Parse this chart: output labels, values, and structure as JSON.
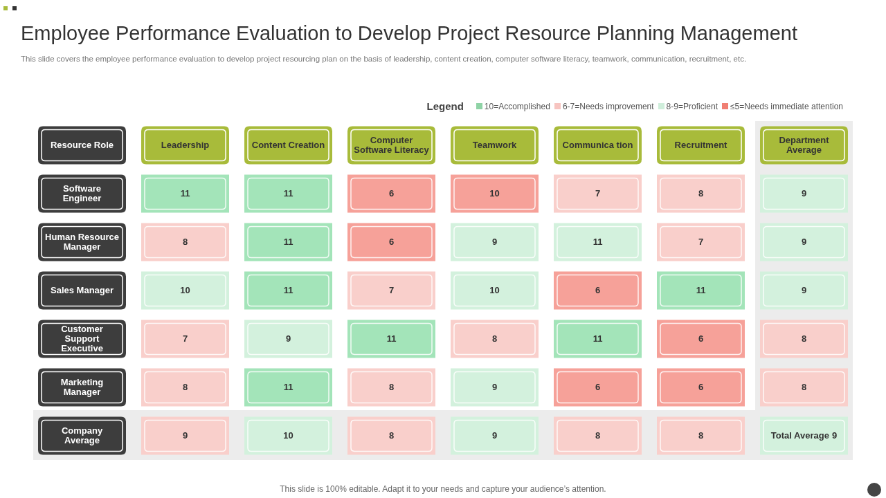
{
  "chart_data": {
    "type": "heatmap",
    "title": "Employee Performance Evaluation to Develop Project Resource Planning Management",
    "subtitle": "This slide covers the employee performance evaluation to develop project resourcing plan on the basis of leadership, content creation, computer software literacy, teamwork, communication, recruitment, etc.",
    "ylabel": "Resource Role",
    "categories": [
      "Leadership",
      "Content Creation",
      "Computer Software Literacy",
      "Teamwork",
      "Communica tion",
      "Recruitment",
      "Department Average"
    ],
    "y_categories": [
      "Software Engineer",
      "Human Resource Manager",
      "Sales Manager",
      "Customer Support Executive",
      "Marketing Manager",
      "Company Average"
    ],
    "cells": [
      [
        11,
        11,
        6,
        10,
        7,
        8,
        9
      ],
      [
        8,
        11,
        6,
        9,
        11,
        7,
        9
      ],
      [
        10,
        11,
        7,
        10,
        6,
        11,
        9
      ],
      [
        7,
        9,
        11,
        8,
        11,
        6,
        8
      ],
      [
        8,
        11,
        8,
        9,
        6,
        6,
        8
      ],
      [
        9,
        10,
        8,
        9,
        8,
        8,
        9
      ]
    ],
    "data_labels": true,
    "colors": [
      [
        "#a3e4b9",
        "#a3e4b9",
        "#f6a199",
        "#f6a199",
        "#f9cfcb",
        "#f9cfcb",
        "#d3f1dd"
      ],
      [
        "#f9cfcb",
        "#a3e4b9",
        "#f6a199",
        "#d3f1dd",
        "#d3f1dd",
        "#f9cfcb",
        "#d3f1dd"
      ],
      [
        "#d3f1dd",
        "#a3e4b9",
        "#f9cfcb",
        "#d3f1dd",
        "#f6a199",
        "#a3e4b9",
        "#d3f1dd"
      ],
      [
        "#f9cfcb",
        "#d3f1dd",
        "#a3e4b9",
        "#f9cfcb",
        "#a3e4b9",
        "#f6a199",
        "#f9cfcb"
      ],
      [
        "#f9cfcb",
        "#a3e4b9",
        "#f9cfcb",
        "#d3f1dd",
        "#f6a199",
        "#f6a199",
        "#f9cfcb"
      ],
      [
        "#f9cfcb",
        "#d3f1dd",
        "#f9cfcb",
        "#d3f1dd",
        "#f9cfcb",
        "#f9cfcb",
        "#d3f1dd"
      ]
    ],
    "annotations": [
      "Total Average",
      "Legend",
      "10=Accomplished",
      "6-7=Needs improvement",
      "8-9=Proficient",
      "≤5=Needs immediate attention",
      "This slide is 100% editable. Adapt it to your needs and capture your audience’s attention."
    ]
  }
}
